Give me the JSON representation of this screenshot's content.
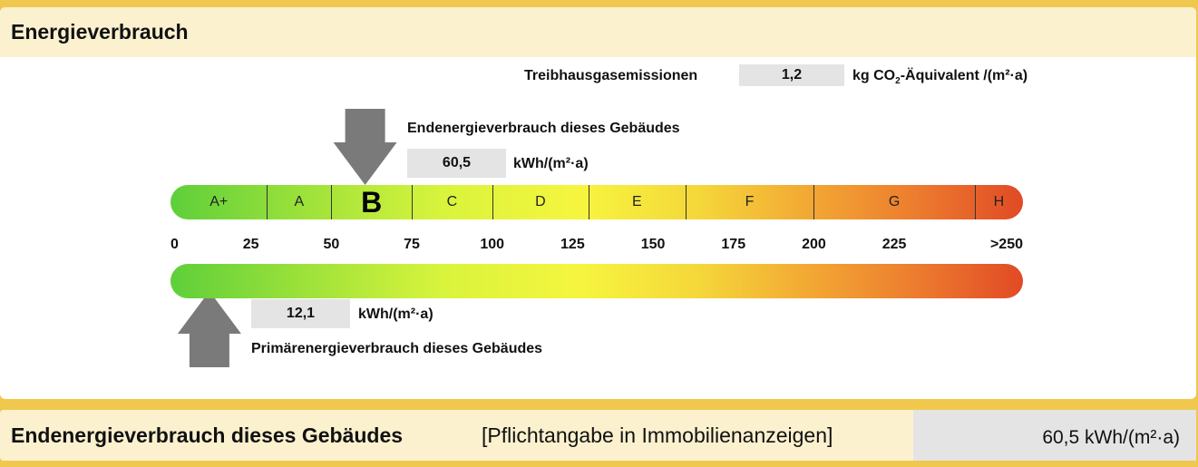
{
  "header": {
    "title": "Energieverbrauch"
  },
  "emissions": {
    "label": "Treibhausgasemissionen",
    "value": "1,2",
    "unit_prefix": "kg CO",
    "unit_sub": "2",
    "unit_suffix": "-Äquivalent /(m²·a)"
  },
  "end_energy": {
    "label": "Endenergieverbrauch dieses Gebäudes",
    "value": "60,5",
    "unit": "kWh/(m²·a)",
    "kwh_value": 60.5
  },
  "primary_energy": {
    "label": "Primärenergieverbrauch dieses Gebäudes",
    "value": "12,1",
    "unit": "kWh/(m²·a)",
    "kwh_value": 12.1
  },
  "classes": [
    {
      "label": "A+",
      "from": 0,
      "to": 30
    },
    {
      "label": "A",
      "from": 30,
      "to": 50
    },
    {
      "label": "B",
      "from": 50,
      "to": 75,
      "current": true
    },
    {
      "label": "C",
      "from": 75,
      "to": 100
    },
    {
      "label": "D",
      "from": 100,
      "to": 130
    },
    {
      "label": "E",
      "from": 130,
      "to": 160
    },
    {
      "label": "F",
      "from": 160,
      "to": 200
    },
    {
      "label": "G",
      "from": 200,
      "to": 250
    },
    {
      "label": "H",
      "from": 250,
      "to": 265
    }
  ],
  "scale": [
    "0",
    "25",
    "50",
    "75",
    "100",
    "125",
    "150",
    "175",
    "200",
    "225",
    ">250"
  ],
  "colors": {
    "background": "#f0c84e",
    "header": "#fcf1cf",
    "arrow": "#7a7a7a",
    "value_box": "#e4e4e4",
    "gradient_start": "#5ecf3a",
    "gradient_mid": "#f6f53e",
    "gradient_end": "#e14a25"
  },
  "footer": {
    "title": "Endenergieverbrauch dieses Gebäudes",
    "note": "[Pflichtangabe in Immobilienanzeigen]",
    "value": "60,5 kWh/(m²·a)"
  }
}
